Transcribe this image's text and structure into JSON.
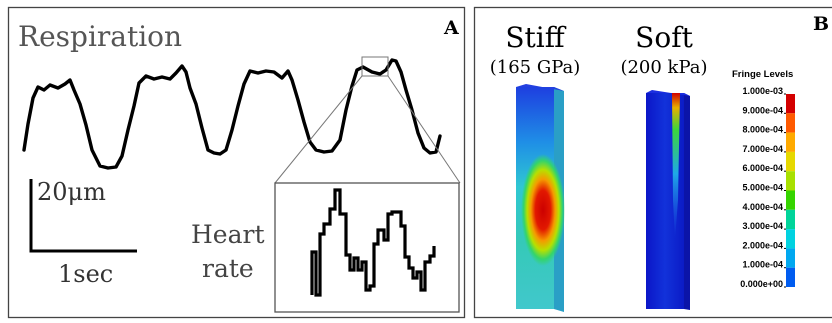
{
  "panel_a": {
    "letter": "A",
    "title": "Respiration",
    "scale_y_label": "20μm",
    "scale_x_label": "1sec",
    "inset_label_line1": "Heart",
    "inset_label_line2": "rate"
  },
  "panel_b": {
    "letter": "B",
    "stiff_label": "Stiff",
    "stiff_value": "(165 GPa)",
    "soft_label": "Soft",
    "soft_value": "(200 kPa)",
    "legend_title": "Fringe Levels",
    "legend_levels": [
      {
        "label": "1.000e-03",
        "color": "#d40000"
      },
      {
        "label": "9.000e-04",
        "color": "#ff5a00"
      },
      {
        "label": "8.000e-04",
        "color": "#ffaa00"
      },
      {
        "label": "7.000e-04",
        "color": "#e6d800"
      },
      {
        "label": "6.000e-04",
        "color": "#a8e000"
      },
      {
        "label": "5.000e-04",
        "color": "#35d400"
      },
      {
        "label": "4.000e-04",
        "color": "#00d49a"
      },
      {
        "label": "3.000e-04",
        "color": "#00d2e0"
      },
      {
        "label": "2.000e-04",
        "color": "#00a8f0"
      },
      {
        "label": "1.000e-04",
        "color": "#005cf0"
      },
      {
        "label": "0.000e+00",
        "color": "#0a1fd8"
      }
    ]
  }
}
